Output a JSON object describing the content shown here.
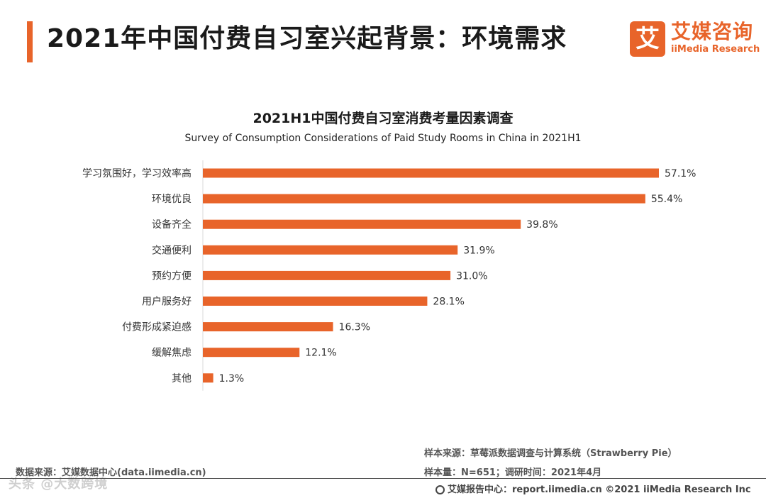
{
  "header": {
    "title": "2021年中国付费自习室兴起背景：环境需求",
    "logo_mark": "艾",
    "logo_cn": "艾媒咨询",
    "logo_en": "iiMedia Research",
    "accent_color": "#e8642a"
  },
  "chart_data": {
    "type": "bar",
    "orientation": "horizontal",
    "title": "2021H1中国付费自习室消费考量因素调查",
    "subtitle": "Survey of Consumption Considerations of Paid Study Rooms in China in 2021H1",
    "categories": [
      "学习氛围好，学习效率高",
      "环境优良",
      "设备齐全",
      "交通便利",
      "预约方便",
      "用户服务好",
      "付费形成紧迫感",
      "缓解焦虑",
      "其他"
    ],
    "values": [
      57.1,
      55.4,
      39.8,
      31.9,
      31.0,
      28.1,
      16.3,
      12.1,
      1.3
    ],
    "value_labels": [
      "57.1%",
      "55.4%",
      "39.8%",
      "31.9%",
      "31.0%",
      "28.1%",
      "16.3%",
      "12.1%",
      "1.3%"
    ],
    "unit": "%",
    "xlim": [
      0,
      57.1
    ],
    "bar_color": "#e8642a",
    "grid": false,
    "legend": "none"
  },
  "source": {
    "sample_source": "样本来源：草莓派数据调查与计算系统（Strawberry Pie）",
    "sample_size": "样本量：N=651；调研时间：2021年4月",
    "data_source": "数据来源：艾媒数据中心(data.iimedia.cn)"
  },
  "footer": {
    "text": "艾媒报告中心：report.iimedia.cn   ©2021  iiMedia Research  Inc",
    "watermark": "头条 @大数跨境"
  }
}
